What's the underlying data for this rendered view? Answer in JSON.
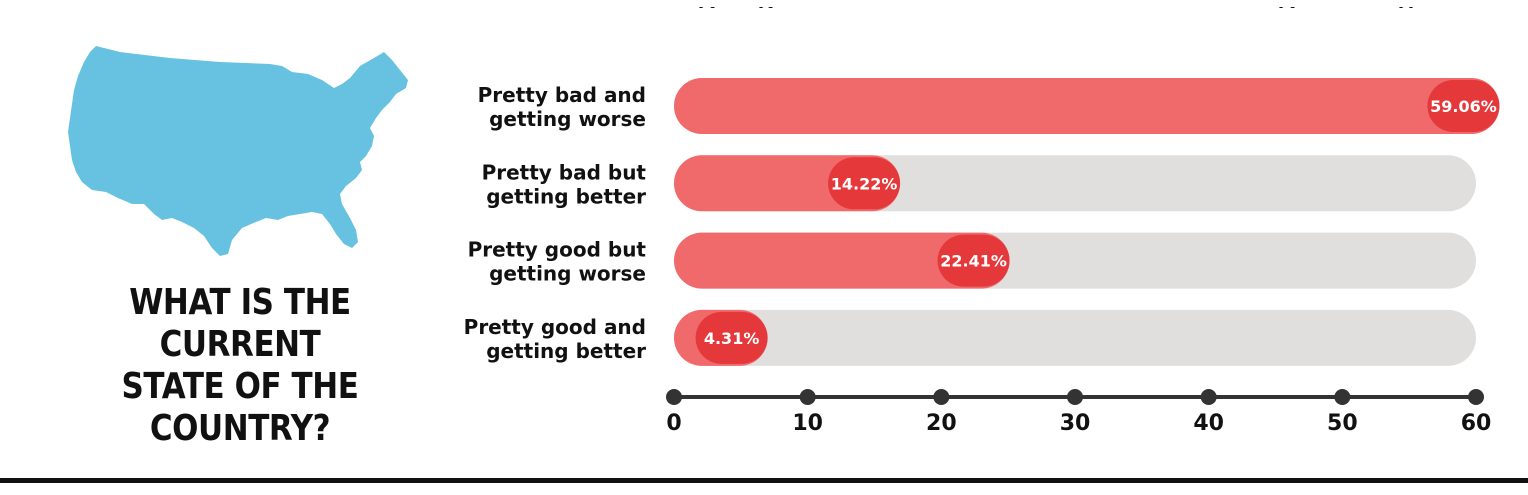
{
  "title_lines": [
    "WHAT IS THE CURRENT",
    "STATE OF THE COUNTRY?"
  ],
  "colors": {
    "map": "#66c2e0",
    "bar_fill": "#f0696b",
    "bar_track": "#e0dfdd",
    "value_bubble": "#e5383b",
    "axis": "#333333"
  },
  "icons": [
    "usa-map-icon"
  ],
  "chart_data": {
    "type": "bar",
    "orientation": "horizontal",
    "categories": [
      [
        "Pretty bad and",
        "getting worse"
      ],
      [
        "Pretty bad but",
        "getting better"
      ],
      [
        "Pretty good but",
        "getting worse"
      ],
      [
        "Pretty good and",
        "getting better"
      ]
    ],
    "values": [
      59.06,
      14.22,
      22.41,
      4.31
    ],
    "value_labels": [
      "59.06%",
      "14.22%",
      "22.41%",
      "4.31%"
    ],
    "xlim": [
      0,
      60
    ],
    "xticks": [
      0,
      10,
      20,
      30,
      40,
      50,
      60
    ],
    "xtick_labels": [
      "0",
      "10",
      "20",
      "30",
      "40",
      "50",
      "60"
    ],
    "grid": false,
    "legend": "none"
  }
}
